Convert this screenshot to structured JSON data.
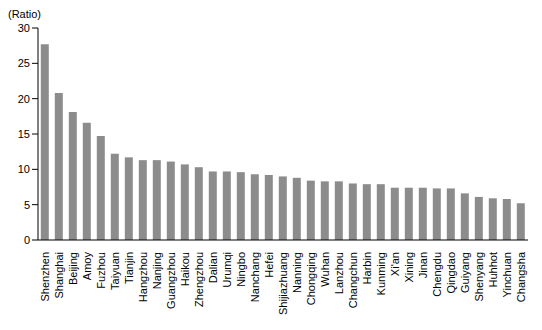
{
  "chart_data": {
    "type": "bar",
    "y_label": "(Ratio)",
    "categories": [
      "Shenzhen",
      "Shanghai",
      "Beijing",
      "Amoy",
      "Fuzhou",
      "Taiyuan",
      "Tianjin",
      "Hangzhou",
      "Nanjing",
      "Guangzhou",
      "Haikou",
      "Zhengzhou",
      "Dalian",
      "Urumqi",
      "Ningbo",
      "Nanchang",
      "Hefei",
      "Shijiazhuang",
      "Nanning",
      "Chongqing",
      "Wuhan",
      "Lanzhou",
      "Changchun",
      "Harbin",
      "Kunming",
      "Xi'an",
      "Xining",
      "Jinan",
      "Chengdu",
      "Qingdao",
      "Guiyang",
      "Shenyang",
      "Huhhot",
      "Yinchuan",
      "Changsha"
    ],
    "values": [
      27.7,
      20.8,
      18.1,
      16.6,
      14.7,
      12.2,
      11.7,
      11.3,
      11.3,
      11.1,
      10.7,
      10.3,
      9.7,
      9.7,
      9.6,
      9.3,
      9.2,
      9.0,
      8.8,
      8.4,
      8.3,
      8.3,
      8.0,
      7.9,
      7.9,
      7.4,
      7.4,
      7.4,
      7.3,
      7.3,
      6.6,
      6.1,
      5.9,
      5.8,
      5.2
    ],
    "color": "#8c8c8c",
    "ylim": [
      0,
      30
    ],
    "yticks": [
      0,
      5,
      10,
      15,
      20,
      25,
      30
    ],
    "grid": false
  }
}
